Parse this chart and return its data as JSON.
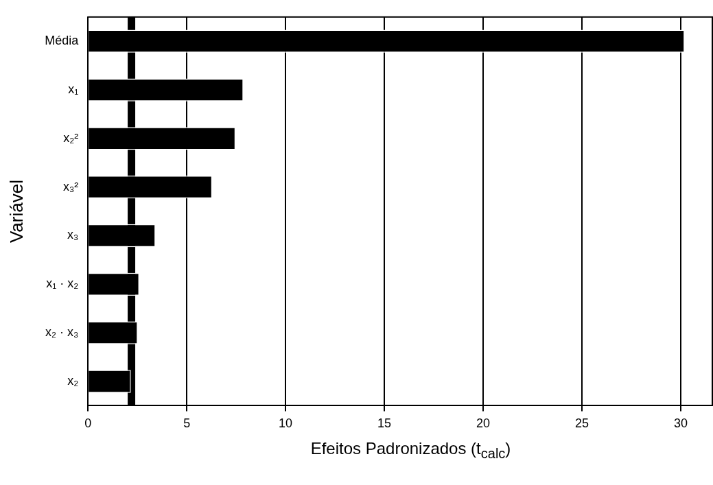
{
  "chart_data": {
    "type": "bar",
    "orientation": "horizontal",
    "xlabel": "Efeitos Padronizados (t$_{calc}$)",
    "ylabel": "Variável",
    "categories": [
      "Média",
      "x₁",
      "x₂²",
      "x₃²",
      "x₃",
      "x₁ · x₂",
      "x₂ · x₃",
      "x₂"
    ],
    "values": [
      30.2,
      7.87,
      7.47,
      6.29,
      3.42,
      2.6,
      2.52,
      2.17
    ],
    "color": "#000000",
    "xlim": [
      0,
      31.6
    ],
    "xticks": [
      0,
      5,
      10,
      15,
      20,
      25,
      30
    ],
    "grid": "x",
    "legend": false,
    "ref_lines": [
      {
        "axis": "x",
        "value": 2.2,
        "color": "#000000"
      }
    ]
  }
}
